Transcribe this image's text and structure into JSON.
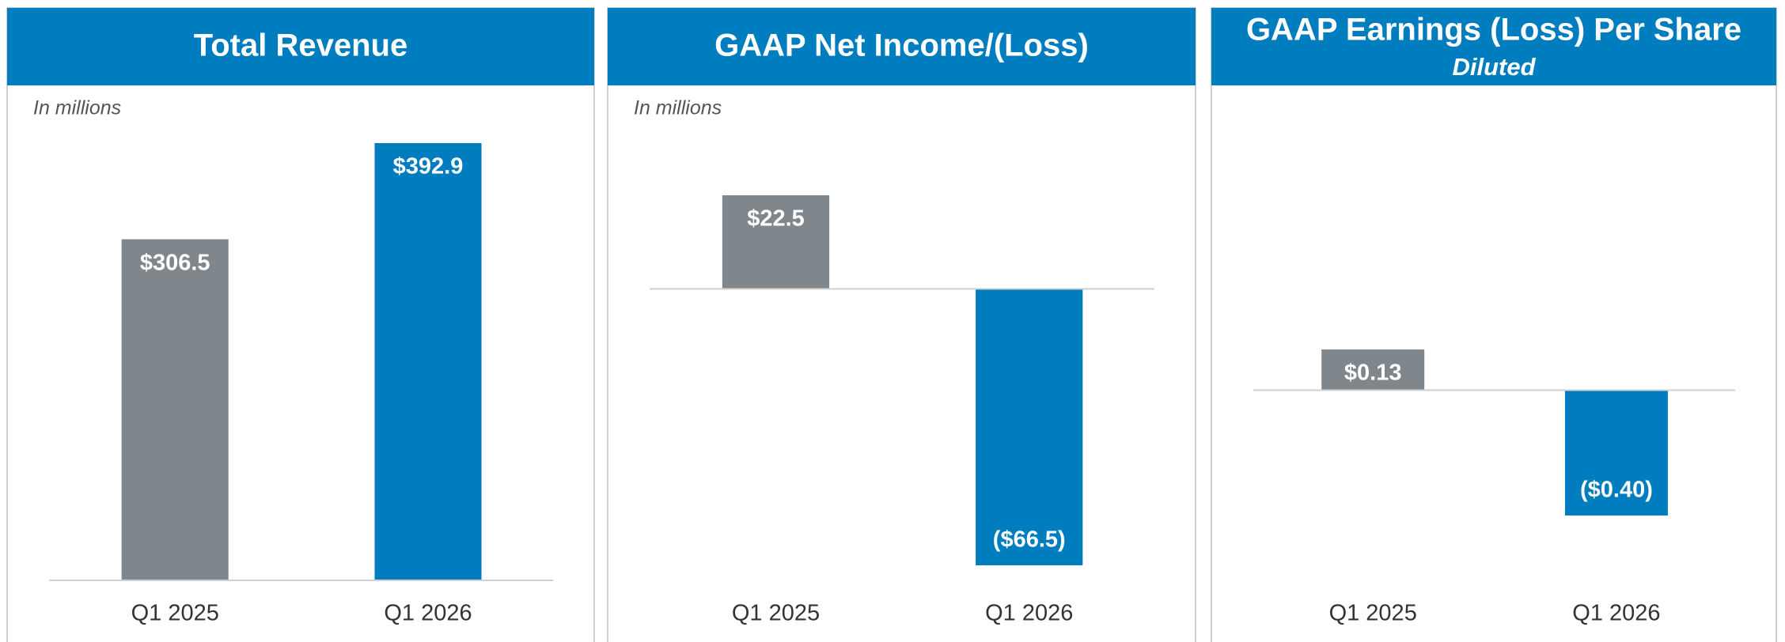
{
  "chart_data": [
    {
      "type": "bar",
      "title": "Total Revenue",
      "note": "In millions",
      "categories": [
        "Q1 2025",
        "Q1 2026"
      ],
      "values": [
        306.5,
        392.9
      ],
      "value_labels": [
        "$306.5",
        "$392.9"
      ],
      "colors": [
        "#7f878d",
        "#007dbf"
      ]
    },
    {
      "type": "bar",
      "title": "GAAP Net Income/(Loss)",
      "note": "In millions",
      "categories": [
        "Q1 2025",
        "Q1 2026"
      ],
      "values": [
        22.5,
        -66.5
      ],
      "value_labels": [
        "$22.5",
        "($66.5)"
      ],
      "colors": [
        "#7f878d",
        "#007dbf"
      ]
    },
    {
      "type": "bar",
      "title": "GAAP Earnings (Loss) Per Share",
      "subtitle": "Diluted",
      "categories": [
        "Q1 2025",
        "Q1 2026"
      ],
      "values": [
        0.13,
        -0.4
      ],
      "value_labels": [
        "$0.13",
        "($0.40)"
      ],
      "colors": [
        "#7f878d",
        "#007dbf"
      ]
    }
  ]
}
